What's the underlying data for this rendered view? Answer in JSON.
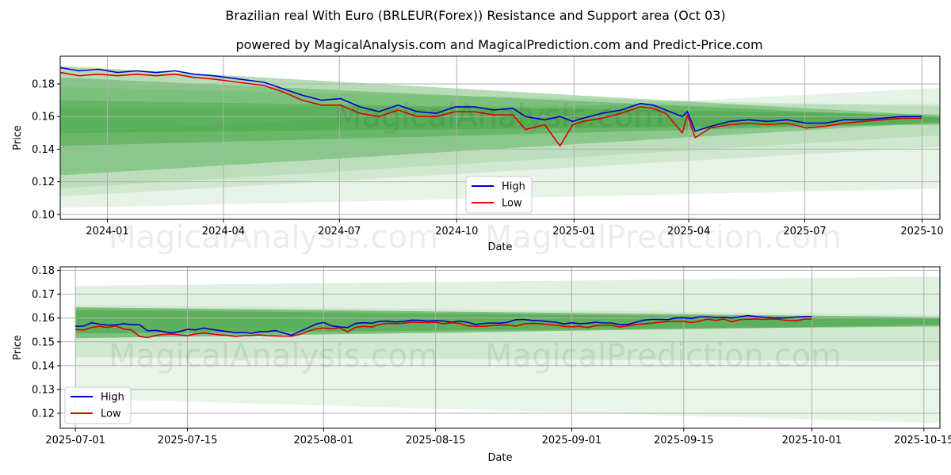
{
  "title": "Brazilian real With Euro (BRLEUR(Forex)) Resistance and Support area (Oct 03)",
  "subtitle": "powered by MagicalAnalysis.com and MagicalPrediction.com and Predict-Price.com",
  "watermarks": [
    "MagicalAnalysis.com",
    "MagicalPrediction.com"
  ],
  "colors": {
    "high": "#0000cc",
    "low": "#e00000",
    "band": "#2e9a2e",
    "grid": "#b0b0b0"
  },
  "chart_data": [
    {
      "type": "line",
      "xlabel": "Date",
      "ylabel": "Price",
      "grid": true,
      "legend": "lower-center",
      "legend_items": [
        "High",
        "Low"
      ],
      "xlim": [
        0,
        690
      ],
      "ylim": [
        0.097,
        0.197
      ],
      "x_ticks": [
        {
          "t": 37,
          "label": "2024-01"
        },
        {
          "t": 128,
          "label": "2024-04"
        },
        {
          "t": 219,
          "label": "2024-07"
        },
        {
          "t": 311,
          "label": "2024-10"
        },
        {
          "t": 403,
          "label": "2025-01"
        },
        {
          "t": 493,
          "label": "2025-04"
        },
        {
          "t": 584,
          "label": "2025-07"
        },
        {
          "t": 676,
          "label": "2025-10"
        }
      ],
      "y_ticks": [
        0.1,
        0.12,
        0.14,
        0.16,
        0.18
      ],
      "x_unit": "days since 2023-11-25",
      "series": [
        {
          "name": "High",
          "x": [
            0,
            15,
            30,
            45,
            60,
            75,
            90,
            105,
            120,
            140,
            160,
            175,
            190,
            205,
            220,
            235,
            250,
            265,
            280,
            295,
            310,
            325,
            340,
            355,
            365,
            380,
            392,
            402,
            410,
            425,
            440,
            455,
            465,
            475,
            488,
            492,
            498,
            510,
            525,
            540,
            555,
            570,
            585,
            600,
            615,
            630,
            645,
            660,
            676
          ],
          "values": [
            0.19,
            0.188,
            0.189,
            0.187,
            0.188,
            0.187,
            0.188,
            0.186,
            0.185,
            0.183,
            0.181,
            0.177,
            0.173,
            0.17,
            0.171,
            0.166,
            0.163,
            0.167,
            0.163,
            0.162,
            0.166,
            0.166,
            0.164,
            0.165,
            0.16,
            0.158,
            0.16,
            0.157,
            0.159,
            0.162,
            0.164,
            0.168,
            0.167,
            0.164,
            0.16,
            0.163,
            0.151,
            0.154,
            0.157,
            0.158,
            0.157,
            0.158,
            0.156,
            0.156,
            0.158,
            0.158,
            0.159,
            0.16,
            0.16
          ]
        },
        {
          "name": "Low",
          "x": [
            0,
            15,
            30,
            45,
            60,
            75,
            90,
            105,
            120,
            140,
            160,
            175,
            190,
            205,
            220,
            235,
            250,
            265,
            280,
            295,
            310,
            325,
            340,
            355,
            365,
            380,
            392,
            402,
            410,
            425,
            440,
            455,
            465,
            475,
            488,
            492,
            498,
            510,
            525,
            540,
            555,
            570,
            585,
            600,
            615,
            630,
            645,
            660,
            676
          ],
          "values": [
            0.187,
            0.185,
            0.186,
            0.185,
            0.186,
            0.185,
            0.186,
            0.184,
            0.183,
            0.181,
            0.179,
            0.175,
            0.17,
            0.167,
            0.167,
            0.162,
            0.16,
            0.164,
            0.16,
            0.16,
            0.163,
            0.163,
            0.161,
            0.161,
            0.152,
            0.155,
            0.142,
            0.155,
            0.157,
            0.159,
            0.162,
            0.166,
            0.165,
            0.162,
            0.15,
            0.161,
            0.147,
            0.153,
            0.155,
            0.156,
            0.155,
            0.156,
            0.153,
            0.154,
            0.156,
            0.157,
            0.158,
            0.159,
            0.159
          ]
        }
      ],
      "bands": [
        {
          "x": [
            0,
            700
          ],
          "upper": [
            0.191,
            0.16
          ],
          "lower": [
            0.124,
            0.157
          ],
          "opacity": 0.35
        },
        {
          "x": [
            0,
            700
          ],
          "upper": [
            0.184,
            0.159
          ],
          "lower": [
            0.142,
            0.156
          ],
          "opacity": 0.35
        },
        {
          "x": [
            0,
            700
          ],
          "upper": [
            0.17,
            0.161
          ],
          "lower": [
            0.15,
            0.155
          ],
          "opacity": 0.3
        },
        {
          "x": [
            0,
            700
          ],
          "upper": [
            0.15,
            0.178
          ],
          "lower": [
            0.104,
            0.116
          ],
          "opacity": 0.12
        },
        {
          "x": [
            0,
            700
          ],
          "upper": [
            0.165,
            0.168
          ],
          "lower": [
            0.111,
            0.142
          ],
          "opacity": 0.12
        },
        {
          "x": [
            0,
            700
          ],
          "upper": [
            0.178,
            0.166
          ],
          "lower": [
            0.116,
            0.149
          ],
          "opacity": 0.12
        }
      ]
    },
    {
      "type": "line",
      "xlabel": "Date",
      "ylabel": "Price",
      "grid": true,
      "legend": "lower-left",
      "legend_items": [
        "High",
        "Low"
      ],
      "xlim": [
        -1.9,
        108
      ],
      "ylim": [
        0.1137,
        0.1815
      ],
      "x_ticks": [
        {
          "t": 0,
          "label": "2025-07-01"
        },
        {
          "t": 14,
          "label": "2025-07-15"
        },
        {
          "t": 31,
          "label": "2025-08-01"
        },
        {
          "t": 45,
          "label": "2025-08-15"
        },
        {
          "t": 62,
          "label": "2025-09-01"
        },
        {
          "t": 76,
          "label": "2025-09-15"
        },
        {
          "t": 92,
          "label": "2025-10-01"
        },
        {
          "t": 106,
          "label": "2025-10-15"
        }
      ],
      "y_ticks": [
        0.12,
        0.13,
        0.14,
        0.15,
        0.16,
        0.17,
        0.18
      ],
      "x_unit": "days since 2025-07-01",
      "series": [
        {
          "name": "High",
          "x": [
            0,
            1,
            2,
            3,
            4,
            5,
            6,
            7,
            8,
            9,
            10,
            11,
            12,
            13,
            14,
            15,
            16,
            17,
            18,
            19,
            20,
            21,
            22,
            23,
            24,
            25,
            26,
            27,
            28,
            29,
            30,
            31,
            32,
            33,
            34,
            35,
            36,
            37,
            38,
            39,
            40,
            41,
            42,
            43,
            44,
            45,
            46,
            47,
            48,
            49,
            50,
            51,
            52,
            53,
            54,
            55,
            56,
            57,
            58,
            59,
            60,
            61,
            62,
            63,
            64,
            65,
            66,
            67,
            68,
            69,
            70,
            71,
            72,
            73,
            74,
            75,
            76,
            77,
            78,
            79,
            80,
            81,
            82,
            83,
            84,
            85,
            86,
            87,
            88,
            89,
            90,
            91,
            92
          ],
          "values": [
            0.1565,
            0.1566,
            0.158,
            0.1574,
            0.157,
            0.1571,
            0.1576,
            0.1572,
            0.1572,
            0.1546,
            0.1548,
            0.1543,
            0.1537,
            0.1543,
            0.1552,
            0.155,
            0.1558,
            0.1552,
            0.1547,
            0.1543,
            0.1538,
            0.1539,
            0.1536,
            0.1542,
            0.1543,
            0.1547,
            0.1537,
            0.1528,
            0.1543,
            0.1558,
            0.1574,
            0.1581,
            0.1567,
            0.1562,
            0.156,
            0.1577,
            0.158,
            0.1578,
            0.1586,
            0.1587,
            0.1583,
            0.1586,
            0.1591,
            0.159,
            0.1587,
            0.1589,
            0.1587,
            0.1582,
            0.1587,
            0.1582,
            0.1573,
            0.1577,
            0.1579,
            0.1578,
            0.1582,
            0.1593,
            0.1594,
            0.159,
            0.1589,
            0.1585,
            0.1582,
            0.1575,
            0.158,
            0.1576,
            0.1578,
            0.1582,
            0.1579,
            0.1579,
            0.1572,
            0.1573,
            0.1582,
            0.1591,
            0.1594,
            0.1594,
            0.1593,
            0.16,
            0.1601,
            0.1598,
            0.1605,
            0.1605,
            0.1602,
            0.1603,
            0.16,
            0.1605,
            0.161,
            0.1606,
            0.1603,
            0.1601,
            0.16,
            0.1601,
            0.1604,
            0.1606,
            0.1606
          ]
        },
        {
          "name": "Low",
          "x": [
            0,
            1,
            2,
            3,
            4,
            5,
            6,
            7,
            8,
            9,
            10,
            11,
            12,
            13,
            14,
            15,
            16,
            17,
            18,
            19,
            20,
            21,
            22,
            23,
            24,
            25,
            26,
            27,
            28,
            29,
            30,
            31,
            32,
            33,
            34,
            35,
            36,
            37,
            38,
            39,
            40,
            41,
            42,
            43,
            44,
            45,
            46,
            47,
            48,
            49,
            50,
            51,
            52,
            53,
            54,
            55,
            56,
            57,
            58,
            59,
            60,
            61,
            62,
            63,
            64,
            65,
            66,
            67,
            68,
            69,
            70,
            71,
            72,
            73,
            74,
            75,
            76,
            77,
            78,
            79,
            80,
            81,
            82,
            83,
            84,
            85,
            86,
            87,
            88,
            89,
            90,
            91,
            92
          ],
          "values": [
            0.1552,
            0.1549,
            0.156,
            0.1565,
            0.156,
            0.1567,
            0.1554,
            0.155,
            0.1523,
            0.1518,
            0.1527,
            0.1531,
            0.1533,
            0.1529,
            0.1526,
            0.1533,
            0.1537,
            0.1533,
            0.1529,
            0.1527,
            0.1523,
            0.1526,
            0.1527,
            0.1529,
            0.1526,
            0.1525,
            0.1524,
            0.1524,
            0.1531,
            0.1544,
            0.1554,
            0.1558,
            0.1555,
            0.1559,
            0.1541,
            0.1561,
            0.1565,
            0.1562,
            0.1573,
            0.1578,
            0.1576,
            0.1578,
            0.1583,
            0.1581,
            0.1581,
            0.1582,
            0.1576,
            0.158,
            0.1577,
            0.1567,
            0.1565,
            0.1565,
            0.1568,
            0.157,
            0.1571,
            0.1566,
            0.1575,
            0.1577,
            0.1576,
            0.1573,
            0.157,
            0.1565,
            0.1563,
            0.1565,
            0.156,
            0.1568,
            0.1569,
            0.1569,
            0.1562,
            0.1567,
            0.1573,
            0.1575,
            0.1578,
            0.1582,
            0.1585,
            0.1586,
            0.1586,
            0.1581,
            0.1587,
            0.1596,
            0.159,
            0.1596,
            0.1584,
            0.1593,
            0.1595,
            0.1596,
            0.1594,
            0.1596,
            0.1594,
            0.1589,
            0.1588,
            0.1595,
            0.1596
          ]
        }
      ],
      "bands": [
        {
          "x": [
            0,
            112
          ],
          "upper": [
            0.1645,
            0.1602
          ],
          "lower": [
            0.1515,
            0.1572
          ],
          "opacity": 0.5
        },
        {
          "x": [
            0,
            112
          ],
          "upper": [
            0.1635,
            0.1595
          ],
          "lower": [
            0.1535,
            0.1565
          ],
          "opacity": 0.4
        },
        {
          "x": [
            0,
            112
          ],
          "upper": [
            0.1735,
            0.1775
          ],
          "lower": [
            0.1435,
            0.1418
          ],
          "opacity": 0.14
        },
        {
          "x": [
            0,
            112
          ],
          "upper": [
            0.1655,
            0.1612
          ],
          "lower": [
            0.1262,
            0.1155
          ],
          "opacity": 0.1
        }
      ]
    }
  ]
}
